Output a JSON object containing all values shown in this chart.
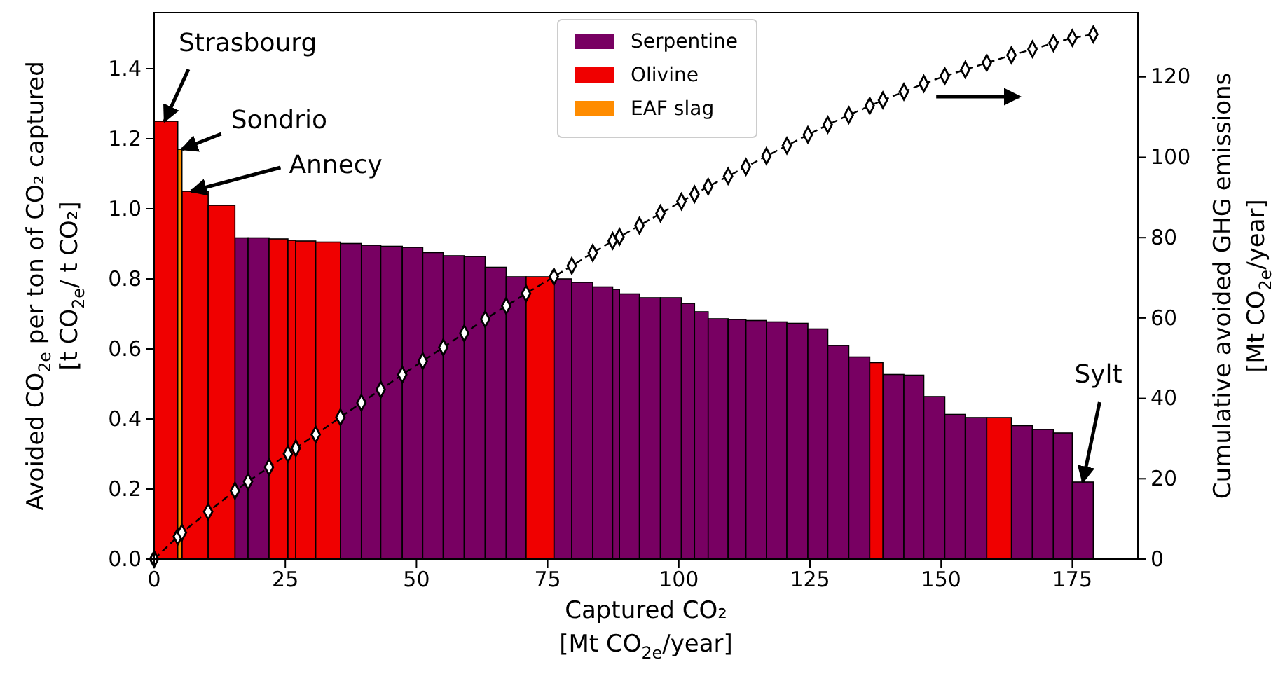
{
  "chart_data": {
    "type": "histogram",
    "xlabel": "Captured CO₂\n[Mt CO$_{2e}$/year]",
    "ylabel": "Avoided CO$_{2e}$ per ton of CO₂ captured\n[t CO$_{2e}$/ t CO₂]",
    "y2label": "Cumulative avoided GHG emissions\n[Mt CO$_{2e}$/year]",
    "bins": [
      0,
      4.5,
      5.3,
      10.3,
      15.4,
      17.9,
      21.9,
      25.5,
      27.0,
      30.8,
      35.5,
      39.5,
      43.2,
      47.3,
      51.2,
      55.1,
      59.1,
      63.1,
      67.1,
      70.9,
      76.2,
      79.6,
      83.6,
      87.4,
      88.7,
      92.5,
      96.5,
      100.5,
      103.0,
      105.6,
      109.4,
      112.8,
      116.7,
      120.6,
      124.6,
      128.4,
      132.4,
      136.4,
      138.9,
      142.9,
      146.7,
      150.7,
      154.6,
      158.7,
      163.4,
      167.4,
      171.4,
      175.0,
      179.0
    ],
    "series": [
      {
        "name": "Serpentine",
        "color": "#780062",
        "values": [
          null,
          null,
          null,
          null,
          0.917,
          0.917,
          null,
          null,
          null,
          null,
          0.901,
          0.896,
          0.893,
          0.89,
          0.875,
          0.866,
          0.864,
          0.833,
          0.806,
          null,
          0.8,
          0.79,
          0.777,
          0.77,
          0.757,
          0.746,
          0.746,
          0.73,
          0.706,
          0.686,
          0.684,
          0.681,
          0.677,
          0.673,
          0.657,
          0.61,
          0.577,
          null,
          0.527,
          0.525,
          0.464,
          0.413,
          0.404,
          null,
          0.381,
          0.37,
          0.36,
          0.22
        ]
      },
      {
        "name": "Olivine",
        "color": "#f00000",
        "values": [
          1.25,
          null,
          1.05,
          1.01,
          null,
          null,
          0.914,
          0.91,
          0.908,
          0.905,
          null,
          null,
          null,
          null,
          null,
          null,
          null,
          null,
          null,
          0.806,
          null,
          null,
          null,
          null,
          null,
          null,
          null,
          null,
          null,
          null,
          null,
          null,
          null,
          null,
          null,
          null,
          null,
          0.561,
          null,
          null,
          null,
          null,
          null,
          0.404,
          null,
          null,
          null,
          null
        ]
      },
      {
        "name": "EAF slag",
        "color": "#ff8c00",
        "values": [
          null,
          1.17,
          null,
          null,
          null,
          null,
          null,
          null,
          null,
          null,
          null,
          null,
          null,
          null,
          null,
          null,
          null,
          null,
          null,
          null,
          null,
          null,
          null,
          null,
          null,
          null,
          null,
          null,
          null,
          null,
          null,
          null,
          null,
          null,
          null,
          null,
          null,
          null,
          null,
          null,
          null,
          null,
          null,
          null,
          null,
          null,
          null,
          null
        ]
      },
      {
        "type": "line",
        "axis": "y2",
        "color": "#000000",
        "marker": "diamond",
        "line_style": "dashed",
        "x": [
          0,
          4.5,
          5.3,
          10.3,
          15.4,
          17.9,
          21.9,
          25.5,
          27.0,
          30.8,
          35.5,
          39.5,
          43.2,
          47.3,
          51.2,
          55.1,
          59.1,
          63.1,
          67.1,
          70.9,
          76.2,
          79.6,
          83.6,
          87.4,
          88.7,
          92.5,
          96.5,
          100.5,
          103.0,
          105.6,
          109.4,
          112.8,
          116.7,
          120.6,
          124.6,
          128.4,
          132.4,
          136.4,
          138.9,
          142.9,
          146.7,
          150.7,
          154.6,
          158.7,
          163.4,
          167.4,
          171.4,
          175.0,
          179.0
        ],
        "values": [
          0,
          5.6,
          6.6,
          11.8,
          17.0,
          19.3,
          22.9,
          26.2,
          27.6,
          31.0,
          35.3,
          38.9,
          42.2,
          45.9,
          49.3,
          52.7,
          56.2,
          59.7,
          63.0,
          66.1,
          70.3,
          73.0,
          76.2,
          79.2,
          80.2,
          83.0,
          86.0,
          89.0,
          90.8,
          92.7,
          95.3,
          97.6,
          100.3,
          102.9,
          105.6,
          108.1,
          110.5,
          112.8,
          114.2,
          116.3,
          118.3,
          120.2,
          121.8,
          123.5,
          125.4,
          126.9,
          128.4,
          129.7,
          130.6
        ]
      }
    ],
    "xlim": [
      0,
      187.5
    ],
    "xticks": [
      0,
      25,
      50,
      75,
      100,
      125,
      150,
      175
    ],
    "ylim": [
      0,
      1.56
    ],
    "yticks": [
      {
        "value": 0,
        "label": "0.0"
      },
      {
        "value": 0.2,
        "label": "0.2"
      },
      {
        "value": 0.4,
        "label": "0.4"
      },
      {
        "value": 0.6,
        "label": "0.6"
      },
      {
        "value": 0.8,
        "label": "0.8"
      },
      {
        "value": 1.0,
        "label": "1.0"
      },
      {
        "value": 1.2,
        "label": "1.2"
      },
      {
        "value": 1.4,
        "label": "1.4"
      }
    ],
    "y2lim": [
      0,
      136
    ],
    "y2ticks": [
      0,
      20,
      40,
      60,
      80,
      100,
      120
    ],
    "legend": "top",
    "annotations": [
      {
        "text": "Strasbourg",
        "x": 2,
        "y": 1.25
      },
      {
        "text": "Sondrio",
        "x": 5.3,
        "y": 1.17
      },
      {
        "text": "Annecy",
        "x": 7,
        "y": 1.05
      },
      {
        "text": "Sylt",
        "x": 177,
        "y": 0.22
      }
    ]
  }
}
